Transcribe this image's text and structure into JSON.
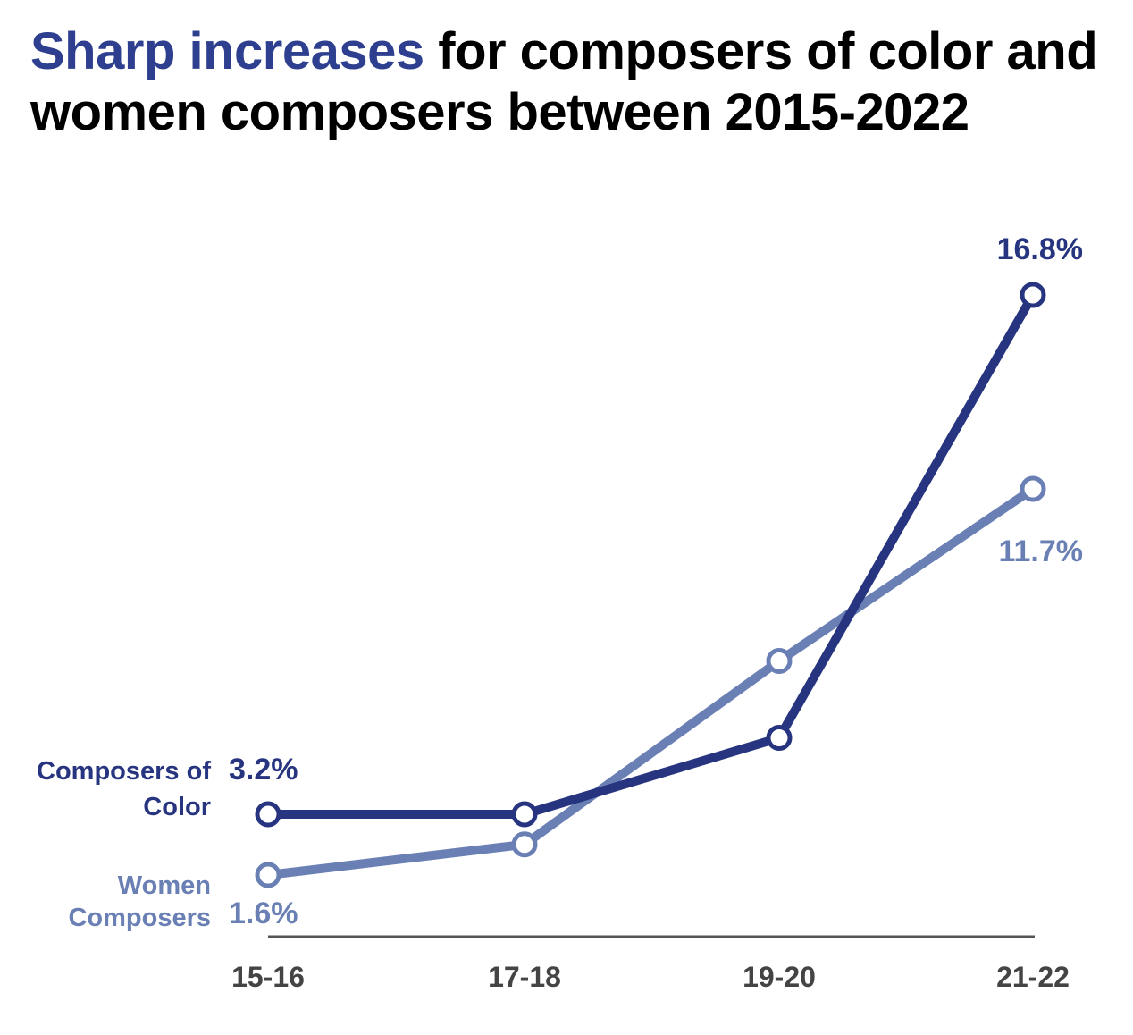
{
  "title": {
    "highlight": "Sharp increases",
    "rest": " for composers of color and women composers between 2015-2022"
  },
  "colors": {
    "composers_of_color": "#27347f",
    "women_composers": "#6a80b5",
    "title_highlight": "#2e3f8f",
    "axis": "#555555",
    "tick_text": "#444444"
  },
  "chart_data": {
    "type": "line",
    "categories": [
      "15-16",
      "17-18",
      "19-20",
      "21-22"
    ],
    "ylim": [
      0,
      18
    ],
    "series": [
      {
        "name": "Composers of Color",
        "name_lines": [
          "Composers of",
          "Color"
        ],
        "values": [
          3.2,
          3.2,
          5.2,
          16.8
        ],
        "labels": {
          "start": "3.2%",
          "end": "16.8%"
        }
      },
      {
        "name": "Women Composers",
        "name_lines": [
          "Women",
          "Composers"
        ],
        "values": [
          1.6,
          2.4,
          7.2,
          11.7
        ],
        "labels": {
          "start": "1.6%",
          "end": "11.7%"
        }
      }
    ]
  }
}
